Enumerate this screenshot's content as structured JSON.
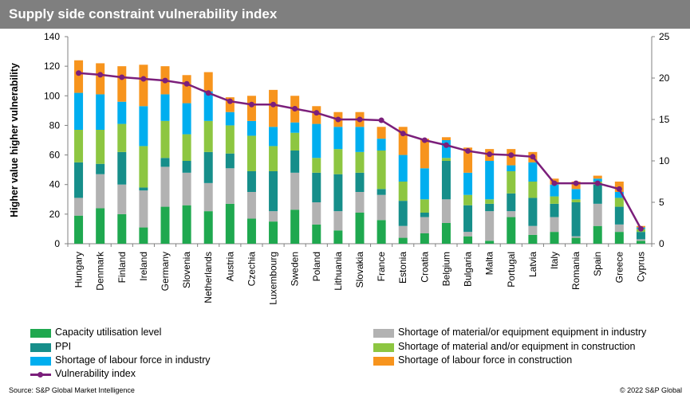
{
  "title": "Supply side constraint vulnerability index",
  "source": "Source: S&P Global Market Intelligence",
  "copyright": "© 2022 S&P Global",
  "chart_data": {
    "type": "bar",
    "stacked": true,
    "title": "Supply side constraint vulnerability index",
    "ylabel": "Higher value higher vulnerability",
    "ylim": [
      0,
      140
    ],
    "yticks": [
      0,
      20,
      40,
      60,
      80,
      100,
      120,
      140
    ],
    "y2lim": [
      0,
      25
    ],
    "y2ticks": [
      0,
      5,
      10,
      15,
      20,
      25
    ],
    "grid": false,
    "legend_position": "bottom",
    "categories": [
      "Hungary",
      "Denmark",
      "Finland",
      "Ireland",
      "Germany",
      "Slovenia",
      "Netherlands",
      "Austria",
      "Czechia",
      "Luxembourg",
      "Sweden",
      "Poland",
      "Lithuania",
      "Slovakia",
      "France",
      "Estonia",
      "Croatia",
      "Belgium",
      "Bulgaria",
      "Malta",
      "Portugal",
      "Latvia",
      "Italy",
      "Romania",
      "Spain",
      "Greece",
      "Cyprus"
    ],
    "series": [
      {
        "name": "Capacity utilisation level",
        "color": "#1fa84f",
        "values": [
          19,
          24,
          20,
          11,
          25,
          26,
          22,
          27,
          17,
          15,
          23,
          13,
          9,
          21,
          16,
          4,
          7,
          14,
          5,
          2,
          18,
          6,
          8,
          4,
          12,
          8,
          2
        ]
      },
      {
        "name": "Shortage of material/or equipment equipment in industry",
        "color": "#b2b2b2",
        "values": [
          12,
          23,
          20,
          25,
          27,
          22,
          19,
          24,
          18,
          7,
          25,
          15,
          13,
          14,
          17,
          8,
          11,
          16,
          3,
          20,
          4,
          6,
          10,
          1,
          15,
          5,
          1
        ]
      },
      {
        "name": "PPI",
        "color": "#168e8a",
        "values": [
          24,
          7,
          22,
          2,
          6,
          8,
          21,
          10,
          14,
          27,
          15,
          20,
          25,
          13,
          4,
          17,
          3,
          26,
          18,
          5,
          12,
          19,
          9,
          23,
          13,
          12,
          5
        ]
      },
      {
        "name": "Shortage of material and/or equipment in construction",
        "color": "#8dc641",
        "values": [
          22,
          23,
          19,
          28,
          25,
          18,
          21,
          19,
          24,
          17,
          12,
          10,
          17,
          14,
          26,
          13,
          9,
          2,
          7,
          3,
          15,
          11,
          5,
          2,
          2,
          6,
          2
        ]
      },
      {
        "name": "Shortage of labour force in industry",
        "color": "#00aeef",
        "values": [
          25,
          24,
          15,
          27,
          18,
          21,
          20,
          9,
          10,
          13,
          7,
          23,
          15,
          17,
          8,
          18,
          21,
          12,
          15,
          26,
          4,
          13,
          8,
          7,
          2,
          4,
          1
        ]
      },
      {
        "name": "Shortage of labour force in construction",
        "color": "#f7941d",
        "values": [
          22,
          21,
          24,
          28,
          19,
          19,
          13,
          10,
          17,
          25,
          18,
          12,
          10,
          10,
          8,
          19,
          20,
          2,
          17,
          8,
          11,
          7,
          4,
          5,
          2,
          7,
          1
        ]
      }
    ],
    "line": {
      "name": "Vulnerability index",
      "color": "#7b1f7b",
      "axis": "right",
      "values": [
        20.6,
        20.4,
        20.1,
        19.9,
        19.7,
        19.3,
        18.2,
        17.2,
        16.8,
        16.8,
        16.3,
        15.8,
        15.0,
        15.0,
        14.9,
        13.3,
        12.5,
        11.9,
        11.2,
        10.8,
        10.7,
        10.5,
        7.3,
        7.3,
        7.3,
        6.6,
        1.8
      ]
    }
  }
}
